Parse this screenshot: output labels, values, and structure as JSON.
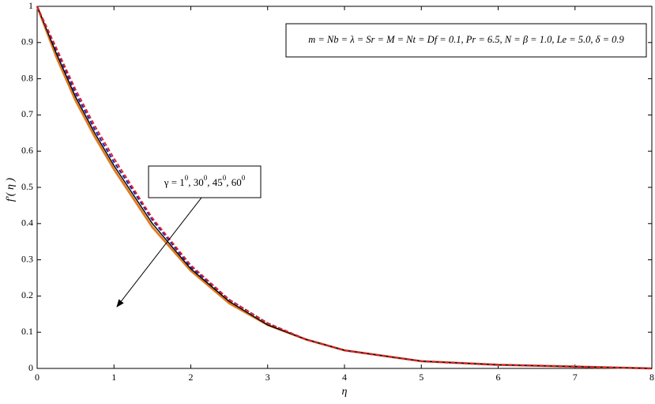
{
  "chart_data": {
    "type": "line",
    "xlabel": "η",
    "ylabel": "f'( η )",
    "annotation": "m = Nb = λ = Sr = M = Nt = Df = 0.1, Pr = 6.5, N = β = 1.0, Le = 5.0, δ = 0.9",
    "gamma_label": [
      {
        "base": "γ = 1",
        "sup": "0"
      },
      {
        "base": ", 30",
        "sup": "0"
      },
      {
        "base": ", 45",
        "sup": "0"
      },
      {
        "base": ", 60",
        "sup": "0"
      }
    ],
    "x": [
      0,
      0.25,
      0.5,
      0.75,
      1,
      1.5,
      2,
      2.5,
      3,
      3.5,
      4,
      5,
      6,
      7,
      8
    ],
    "series": [
      {
        "color": "#000000",
        "style": "solid",
        "values": [
          1,
          0.87,
          0.75,
          0.65,
          0.56,
          0.4,
          0.275,
          0.185,
          0.12,
          0.08,
          0.05,
          0.02,
          0.01,
          0.005,
          0
        ]
      },
      {
        "color": "#1f1fbf",
        "style": "dashed",
        "values": [
          1,
          0.88,
          0.76,
          0.66,
          0.57,
          0.41,
          0.28,
          0.19,
          0.125,
          0.08,
          0.05,
          0.02,
          0.01,
          0.005,
          0
        ]
      },
      {
        "color": "#e0202a",
        "style": "dashed",
        "values": [
          1,
          0.885,
          0.77,
          0.67,
          0.58,
          0.415,
          0.285,
          0.19,
          0.125,
          0.08,
          0.05,
          0.02,
          0.01,
          0.005,
          0
        ]
      },
      {
        "color": "#e07a20",
        "style": "thick",
        "values": [
          1,
          0.86,
          0.74,
          0.64,
          0.55,
          0.39,
          0.27,
          0.18,
          0.12,
          0.08,
          0.05,
          0.02,
          0.01,
          0.005,
          0
        ]
      }
    ],
    "xlim": [
      0,
      8
    ],
    "xticks": [
      0,
      1,
      2,
      3,
      4,
      5,
      6,
      7,
      8
    ],
    "ylim": [
      0,
      1
    ],
    "yticks": [
      0,
      0.1,
      0.2,
      0.3,
      0.4,
      0.5,
      0.6,
      0.7,
      0.8,
      0.9,
      1
    ]
  }
}
